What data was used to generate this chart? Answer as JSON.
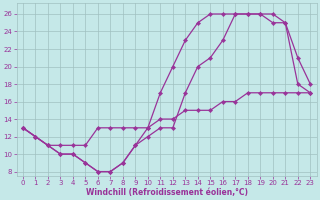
{
  "xlabel": "Windchill (Refroidissement éolien,°C)",
  "bg_color": "#c5e8e8",
  "grid_color": "#a0c0c0",
  "line_color": "#993399",
  "marker": "D",
  "markersize": 2.2,
  "linewidth": 0.9,
  "xlim": [
    -0.5,
    23.5
  ],
  "ylim": [
    7.5,
    27.2
  ],
  "xticks": [
    0,
    1,
    2,
    3,
    4,
    5,
    6,
    7,
    8,
    9,
    10,
    11,
    12,
    13,
    14,
    15,
    16,
    17,
    18,
    19,
    20,
    21,
    22,
    23
  ],
  "yticks": [
    8,
    10,
    12,
    14,
    16,
    18,
    20,
    22,
    24,
    26
  ],
  "line1_x": [
    0,
    1,
    2,
    3,
    4,
    5,
    6,
    7,
    8,
    9,
    10,
    11,
    12,
    13,
    14,
    15,
    16,
    17,
    18,
    19,
    20,
    21,
    22,
    23
  ],
  "line1_y": [
    13,
    12,
    11,
    10,
    10,
    9,
    8,
    8,
    9,
    11,
    13,
    17,
    20,
    23,
    25,
    26,
    26,
    26,
    26,
    26,
    26,
    25,
    21,
    18
  ],
  "line2_x": [
    0,
    1,
    2,
    3,
    4,
    5,
    6,
    7,
    8,
    9,
    10,
    11,
    12,
    13,
    14,
    15,
    16,
    17,
    18,
    19,
    20,
    21,
    22,
    23
  ],
  "line2_y": [
    13,
    12,
    11,
    10,
    10,
    9,
    8,
    8,
    9,
    11,
    12,
    13,
    13,
    17,
    20,
    21,
    23,
    26,
    26,
    26,
    25,
    25,
    18,
    17
  ],
  "line3_x": [
    0,
    1,
    2,
    3,
    4,
    5,
    6,
    7,
    8,
    9,
    10,
    11,
    12,
    13,
    14,
    15,
    16,
    17,
    18,
    19,
    20,
    21,
    22,
    23
  ],
  "line3_y": [
    13,
    12,
    11,
    11,
    11,
    11,
    13,
    13,
    13,
    13,
    13,
    14,
    14,
    15,
    15,
    15,
    16,
    16,
    17,
    17,
    17,
    17,
    17,
    17
  ]
}
